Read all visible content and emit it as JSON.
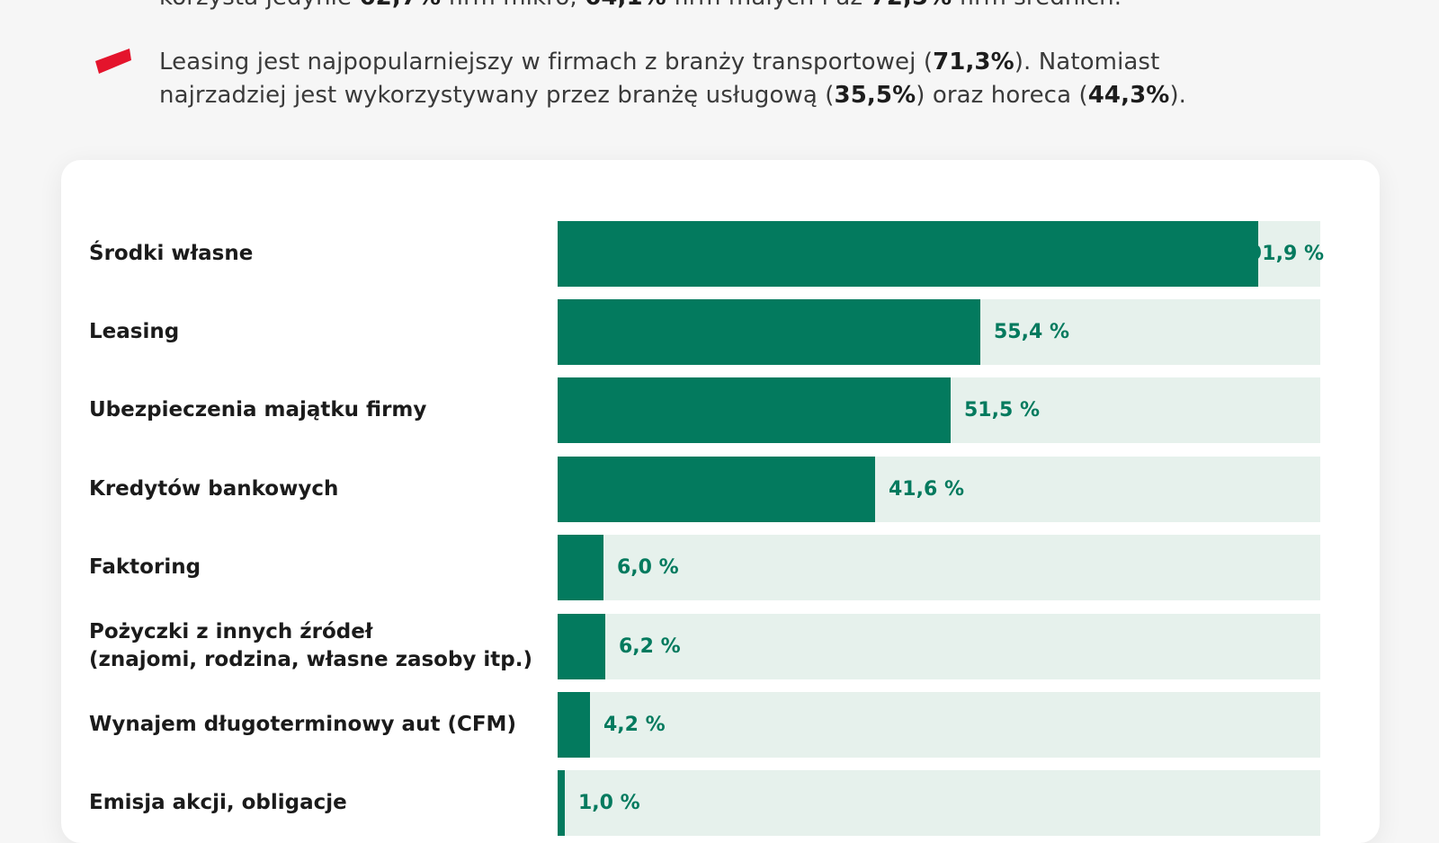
{
  "intro": {
    "top_line": {
      "t1": "korzysta jedynie ",
      "v1": "62,7%",
      "t2": " firm mikro, ",
      "v2": "64,1%",
      "t3": " firm małych i aż ",
      "v3": "72,5%",
      "t4": " firm średnich."
    },
    "bullet2": {
      "line1_t1": "Leasing jest najpopularniejszy w firmach z branży transportowej (",
      "line1_v1": "71,3%",
      "line1_t2": "). Natomiast",
      "line2_t1": "najrzadziej jest wykorzystywany przez branżę usługową (",
      "line2_v1": "35,5%",
      "line2_t2": ") oraz horeca (",
      "line2_v2": "44,3%",
      "line2_t3": ")."
    }
  },
  "colors": {
    "bar_fill": "#037a5e",
    "bar_track": "#e6f1ec",
    "marker": "#e4142c"
  },
  "chart_data": {
    "type": "bar",
    "orientation": "horizontal",
    "xlim": [
      0,
      100
    ],
    "categories": [
      "Środki własne",
      "Leasing",
      "Ubezpieczenia majątku firmy",
      "Kredytów bankowych",
      "Faktoring",
      "Pożyczki z innych źródeł\n(znajomi, rodzina, własne zasoby itp.)",
      "Wynajem długoterminowy aut (CFM)",
      "Emisja akcji, obligacje"
    ],
    "values": [
      91.9,
      55.4,
      51.5,
      41.6,
      6.0,
      6.2,
      4.2,
      1.0
    ],
    "value_labels": [
      "91,9 %",
      "55,4 %",
      "51,5 %",
      "41,6 %",
      "6,0 %",
      "6,2 %",
      "4,2 %",
      "1,0 %"
    ]
  }
}
